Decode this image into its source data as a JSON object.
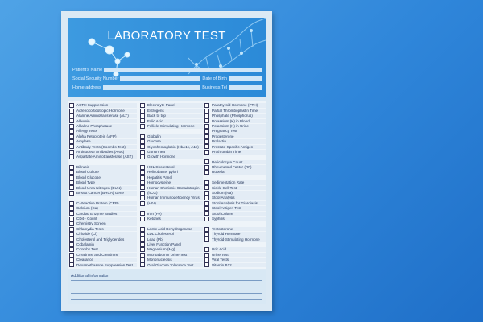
{
  "header": {
    "title": "LABORATORY TEST",
    "fields": {
      "patient_name": "Patient's Name",
      "ssn": "Social Security Number",
      "dob": "Date of Birth",
      "home_address": "Home address",
      "business_tel": "Business Tel"
    }
  },
  "checklist": {
    "column1": [
      "ACTH Suppression",
      "Adrenocorticotropic Hormone",
      "Alanine Aminotransferase (ALT)",
      "Albumin",
      "Alkaline Phosphatase",
      "Allergy Tests",
      "Alpha Fetoprotein (AFP)",
      "Amylase",
      "Antibody Tests (Coombs Test)",
      "Antinuclear Antibodies (ANA)",
      "Aspartate Aminotransferase (AST)",
      "",
      "Bilirubin",
      "Blood Culture",
      "Blood Glucose",
      "Blood Type",
      "Blood Urea Nitrogen (BUN)",
      "Breast Cancer (BRCA) Gene",
      "",
      "C-Reactive Protein (CRP)",
      "Calcium (Ca)",
      "Cardiac Enzyme Studies",
      "CD4+ Count",
      "Chemistry Screen",
      "Chlamydia Tests",
      "Chloride (Cl)",
      "Cholesterol and Triglycerides",
      "Cobalamin",
      "Coombs Test",
      "Creatinine and Creatinine",
      "Clearance",
      "Dexamethasone Suppression Test"
    ],
    "column2": [
      "Electrolyte Panel",
      "Estrogens",
      "Back to top",
      "Folic Acid",
      "Follicle-Stimulating Hormone",
      "",
      "Globulin",
      "Glucose",
      "Glycohemoglobin (HbA1c, A1c)",
      "Gonorrhea",
      "Growth Hormone",
      "",
      "HDL Cholesterol",
      "Helicobacter pylori",
      "Hepatitis Panel",
      "Homocysteine",
      "Human Chorionic Gonadotropin",
      "(hCG)",
      "Human Immunodeficiency Virus",
      "(HIV)",
      "",
      "Iron (Fe)",
      "Ketones",
      "",
      "Lactic Acid Dehydrogenase",
      "LDL Cholesterol",
      "Lead (Pb)",
      "Liver Function Panel",
      "Magnesium (Mg)",
      "Microalbumin Urine Test",
      "Mononucleosis",
      "Oral Glucose Tolerance Test"
    ],
    "column3": [
      "Parathyroid Hormone (PTH)",
      "Partial Thromboplastin Time",
      "Phosphate (Phosphorus)",
      "Potassium (K) in Blood",
      "Potassium (K) in Urine",
      "Pregnancy Test",
      "Progesterone",
      "Prolactin",
      "Prostate-Specific Antigen",
      "Prothrombin Time",
      "",
      "Reticulocyte Count",
      "Rheumatoid Factor (RF)",
      "Rubella",
      "",
      "Sedimentation Rate",
      "Sickle Cell Test",
      "Sodium (Na)",
      "Stool Analysis",
      "Stool Analysis for Giardiasis",
      "Stool Antigen Test",
      "Stool Culture",
      "Syphilis",
      "",
      "Testosterone",
      "Thyroid Hormone",
      "Thyroid-Stimulating Hormone",
      "",
      "Uric Acid",
      "Urine Test",
      "Viral Tests",
      "Vitamin B12"
    ]
  },
  "additional": {
    "label": "Additional information"
  },
  "colors": {
    "background": "#2f86da",
    "header": "#2b8ad8",
    "paper": "#dbe9f4"
  }
}
